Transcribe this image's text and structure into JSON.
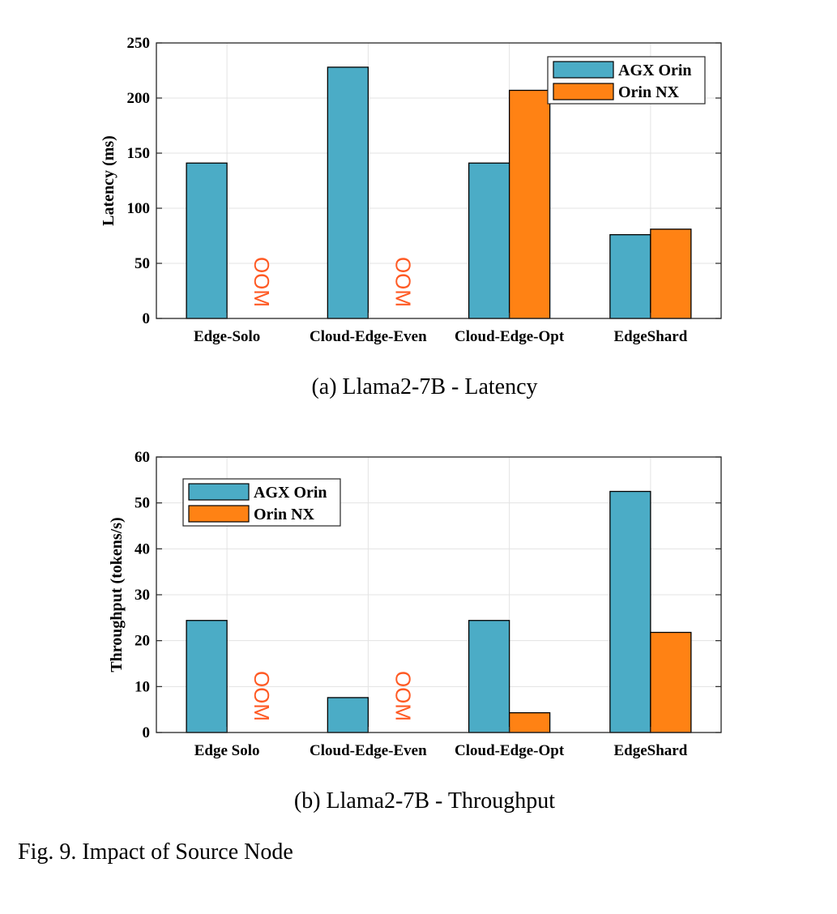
{
  "figure_caption": "Fig. 9.  Impact of Source Node",
  "chart_data": [
    {
      "type": "bar",
      "title": "(a)  Llama2-7B - Latency",
      "xlabel": "",
      "ylabel": "Latency (ms)",
      "ylim": [
        0,
        250
      ],
      "yticks": [
        0,
        50,
        100,
        150,
        200,
        250
      ],
      "grid": true,
      "legend_position": "top-right",
      "categories": [
        "Edge-Solo",
        "Cloud-Edge-Even",
        "Cloud-Edge-Opt",
        "EdgeShard"
      ],
      "series": [
        {
          "name": "AGX Orin",
          "color": "#4bacc6",
          "values": [
            141,
            228,
            141,
            76
          ]
        },
        {
          "name": "Orin NX",
          "color": "#ff8214",
          "values": [
            null,
            null,
            207,
            81
          ]
        }
      ],
      "annotations": [
        {
          "text": "OOM",
          "category": 0,
          "series": 1
        },
        {
          "text": "OOM",
          "category": 1,
          "series": 1
        }
      ]
    },
    {
      "type": "bar",
      "title": "(b)  Llama2-7B - Throughput",
      "xlabel": "",
      "ylabel": "Throughput (tokens/s)",
      "ylim": [
        0,
        60
      ],
      "yticks": [
        0,
        10,
        20,
        30,
        40,
        50,
        60
      ],
      "grid": true,
      "legend_position": "top-left",
      "categories": [
        "Edge Solo",
        "Cloud-Edge-Even",
        "Cloud-Edge-Opt",
        "EdgeShard"
      ],
      "series": [
        {
          "name": "AGX Orin",
          "color": "#4bacc6",
          "values": [
            24.4,
            7.6,
            24.4,
            52.5
          ]
        },
        {
          "name": "Orin NX",
          "color": "#ff8214",
          "values": [
            null,
            null,
            4.3,
            21.8
          ]
        }
      ],
      "annotations": [
        {
          "text": "OOM",
          "category": 0,
          "series": 1
        },
        {
          "text": "OOM",
          "category": 1,
          "series": 1
        }
      ]
    }
  ]
}
